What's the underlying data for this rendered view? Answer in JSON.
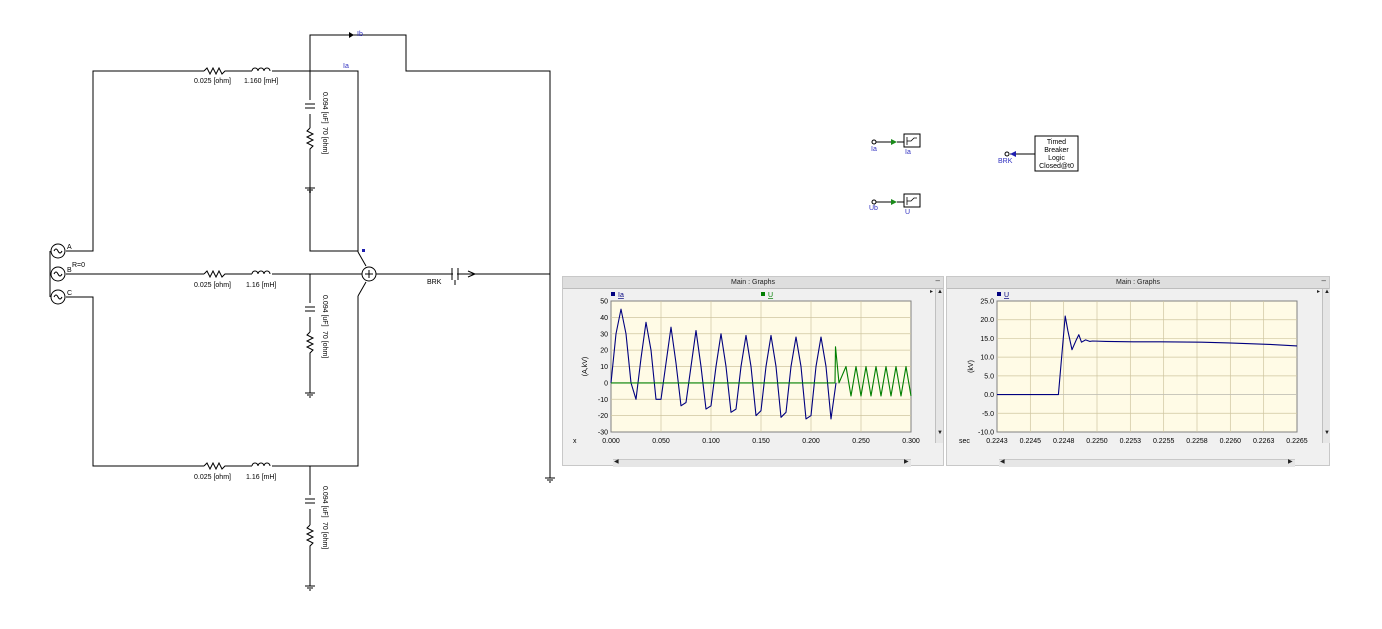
{
  "schematic": {
    "source_labels": [
      "A",
      "B",
      "C"
    ],
    "ground_resistance": "R=0",
    "line_a": {
      "resistance": "0.025 [ohm]",
      "inductance": "1.160 [mH]",
      "shunt_c": "0.094 [uF]",
      "shunt_r": "70 [ohm]"
    },
    "line_b": {
      "resistance": "0.025 [ohm]",
      "inductance": "1.16 [mH]",
      "shunt_c": "0.094 [uF]",
      "shunt_r": "70 [ohm]"
    },
    "line_c": {
      "resistance": "0.025 [ohm]",
      "inductance": "1.16 [mH]",
      "shunt_c": "0.094 [uF]",
      "shunt_r": "70 [ohm]"
    },
    "meter_ia": "Ia",
    "meter_ib": "Ib",
    "breaker": "BRK",
    "meter_block_1": {
      "in": "Ia",
      "out": "Ia"
    },
    "meter_block_2": {
      "in": "Ub",
      "out": "U"
    },
    "breaker_logic": {
      "lines": [
        "Timed",
        "Breaker",
        "Logic",
        "Closed@t0"
      ],
      "signal": "BRK"
    }
  },
  "graph_left": {
    "title": "Main : Graphs",
    "minimize": "–",
    "legend": [
      {
        "name": "Ia",
        "color": "#00007f"
      },
      {
        "name": "U",
        "color": "#007f00"
      }
    ],
    "ylabel": "(A,kV)",
    "xlabel": "x",
    "y_ticks": [
      "50",
      "40",
      "30",
      "20",
      "10",
      "0",
      "-10",
      "-20",
      "-30"
    ],
    "x_ticks": [
      "0.000",
      "0.050",
      "0.100",
      "0.150",
      "0.200",
      "0.250",
      "0.300"
    ]
  },
  "graph_right": {
    "title": "Main : Graphs",
    "minimize": "–",
    "legend": [
      {
        "name": "U",
        "color": "#00007f"
      }
    ],
    "ylabel": "(kV)",
    "xlabel": "sec",
    "y_ticks": [
      "25.0",
      "20.0",
      "15.0",
      "10.0",
      "5.0",
      "0.0",
      "-5.0",
      "-10.0"
    ],
    "x_ticks": [
      "0.2243",
      "0.2245",
      "0.2248",
      "0.2250",
      "0.2253",
      "0.2255",
      "0.2258",
      "0.2260",
      "0.2263",
      "0.2265"
    ]
  },
  "chart_data": [
    {
      "type": "line",
      "xlim": [
        0,
        0.3
      ],
      "ylim": [
        -30,
        50
      ],
      "grid": true,
      "legend": "top-left",
      "series": [
        {
          "name": "Ia",
          "color": "#00007f",
          "x": [
            0.0,
            0.005,
            0.01,
            0.015,
            0.02,
            0.025,
            0.03,
            0.035,
            0.04,
            0.045,
            0.05,
            0.055,
            0.06,
            0.065,
            0.07,
            0.075,
            0.08,
            0.085,
            0.09,
            0.095,
            0.1,
            0.105,
            0.11,
            0.115,
            0.12,
            0.125,
            0.13,
            0.135,
            0.14,
            0.145,
            0.15,
            0.155,
            0.16,
            0.165,
            0.17,
            0.175,
            0.18,
            0.185,
            0.19,
            0.195,
            0.2,
            0.205,
            0.21,
            0.215,
            0.22,
            0.225
          ],
          "y": [
            0,
            30,
            45,
            30,
            0,
            -10,
            15,
            37,
            20,
            -10,
            -10,
            12,
            34,
            12,
            -14,
            -12,
            10,
            32,
            10,
            -16,
            -14,
            10,
            30,
            10,
            -18,
            -16,
            10,
            29,
            10,
            -20,
            -17,
            10,
            29,
            10,
            -21,
            -18,
            10,
            28,
            10,
            -22,
            -20,
            10,
            28,
            10,
            -22,
            0
          ]
        },
        {
          "name": "U",
          "color": "#007f00",
          "x": [
            0.0,
            0.224,
            0.2245,
            0.228,
            0.235,
            0.24,
            0.245,
            0.25,
            0.255,
            0.26,
            0.265,
            0.27,
            0.275,
            0.28,
            0.285,
            0.29,
            0.295,
            0.3
          ],
          "y": [
            0,
            0,
            22,
            0,
            10,
            -8,
            10,
            -8,
            10,
            -8,
            10,
            -8,
            10,
            -8,
            10,
            -8,
            10,
            -8
          ]
        }
      ]
    },
    {
      "type": "line",
      "xlim": [
        0.2243,
        0.2265
      ],
      "ylim": [
        -10,
        25
      ],
      "grid": true,
      "legend": "top-left",
      "series": [
        {
          "name": "U",
          "color": "#00007f",
          "x": [
            0.2243,
            0.2247,
            0.22475,
            0.2248,
            0.22482,
            0.22485,
            0.22488,
            0.2249,
            0.22492,
            0.22495,
            0.22498,
            0.225,
            0.2251,
            0.2253,
            0.2255,
            0.2258,
            0.226,
            0.2263,
            0.2265
          ],
          "y": [
            0,
            0,
            0,
            21,
            17,
            12,
            14.5,
            16,
            14,
            14.6,
            14.2,
            14.3,
            14.2,
            14.1,
            14.1,
            14.0,
            13.8,
            13.4,
            13.0
          ]
        }
      ]
    }
  ]
}
